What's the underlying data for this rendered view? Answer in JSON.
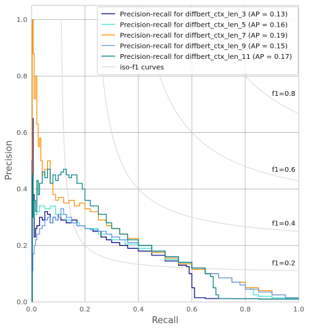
{
  "chart_data": {
    "type": "line",
    "xlabel": "Recall",
    "ylabel": "Precision",
    "xlim": [
      0.0,
      1.0
    ],
    "ylim": [
      0.0,
      1.05
    ],
    "xticks": [
      "0.0",
      "0.2",
      "0.4",
      "0.6",
      "0.8",
      "1.0"
    ],
    "xtick_values": [
      0.0,
      0.2,
      0.4,
      0.6,
      0.8,
      1.0
    ],
    "yticks": [
      "0.0",
      "0.2",
      "0.4",
      "0.6",
      "0.8",
      "1.0"
    ],
    "ytick_values": [
      0.0,
      0.2,
      0.4,
      0.6,
      0.8,
      1.0
    ],
    "grid": true,
    "legend_position": "top-right",
    "legend": [
      {
        "label": "Precision-recall for diffbert_ctx_len_3 (AP = 0.13)",
        "color": "#000080"
      },
      {
        "label": "Precision-recall for diffbert_ctx_len_5 (AP = 0.16)",
        "color": "#40e0d0"
      },
      {
        "label": "Precision-recall for diffbert_ctx_len_7 (AP = 0.19)",
        "color": "#ff8c00"
      },
      {
        "label": "Precision-recall for diffbert_ctx_len_9 (AP = 0.15)",
        "color": "#6495ed"
      },
      {
        "label": "Precision-recall for diffbert_ctx_len_11 (AP = 0.17)",
        "color": "#008080"
      },
      {
        "label": "iso-f1 curves",
        "color": "#d9d9d9"
      }
    ],
    "iso_f1": [
      {
        "f1": 0.2,
        "label": "f1=0.2",
        "label_at": [
          0.9,
          0.14
        ]
      },
      {
        "f1": 0.4,
        "label": "f1=0.4",
        "label_at": [
          0.9,
          0.28
        ]
      },
      {
        "f1": 0.6,
        "label": "f1=0.6",
        "label_at": [
          0.9,
          0.47
        ]
      },
      {
        "f1": 0.8,
        "label": "f1=0.8",
        "label_at": [
          0.9,
          0.74
        ]
      }
    ],
    "series": [
      {
        "name": "diffbert_ctx_len_3",
        "color": "#000080",
        "points": [
          [
            0.0,
            0.0
          ],
          [
            0.002,
            0.5
          ],
          [
            0.004,
            0.65
          ],
          [
            0.006,
            0.38
          ],
          [
            0.01,
            0.23
          ],
          [
            0.015,
            0.26
          ],
          [
            0.02,
            0.27
          ],
          [
            0.03,
            0.3
          ],
          [
            0.04,
            0.29
          ],
          [
            0.05,
            0.32
          ],
          [
            0.06,
            0.31
          ],
          [
            0.07,
            0.28
          ],
          [
            0.08,
            0.3
          ],
          [
            0.09,
            0.29
          ],
          [
            0.1,
            0.31
          ],
          [
            0.11,
            0.29
          ],
          [
            0.13,
            0.28
          ],
          [
            0.15,
            0.29
          ],
          [
            0.17,
            0.27
          ],
          [
            0.2,
            0.26
          ],
          [
            0.23,
            0.25
          ],
          [
            0.26,
            0.23
          ],
          [
            0.28,
            0.22
          ],
          [
            0.3,
            0.21
          ],
          [
            0.33,
            0.2
          ],
          [
            0.36,
            0.19
          ],
          [
            0.4,
            0.18
          ],
          [
            0.45,
            0.165
          ],
          [
            0.5,
            0.145
          ],
          [
            0.55,
            0.13
          ],
          [
            0.58,
            0.125
          ],
          [
            0.59,
            0.1
          ],
          [
            0.6,
            0.05
          ],
          [
            0.61,
            0.015
          ],
          [
            0.65,
            0.012
          ],
          [
            0.75,
            0.011
          ],
          [
            0.85,
            0.01
          ],
          [
            0.95,
            0.01
          ],
          [
            1.0,
            0.01
          ]
        ]
      },
      {
        "name": "diffbert_ctx_len_5",
        "color": "#40e0d0",
        "points": [
          [
            0.0,
            0.0
          ],
          [
            0.003,
            0.4
          ],
          [
            0.005,
            0.3
          ],
          [
            0.01,
            0.31
          ],
          [
            0.02,
            0.32
          ],
          [
            0.03,
            0.34
          ],
          [
            0.05,
            0.33
          ],
          [
            0.07,
            0.34
          ],
          [
            0.09,
            0.31
          ],
          [
            0.11,
            0.31
          ],
          [
            0.13,
            0.29
          ],
          [
            0.15,
            0.28
          ],
          [
            0.18,
            0.27
          ],
          [
            0.2,
            0.26
          ],
          [
            0.25,
            0.24
          ],
          [
            0.3,
            0.22
          ],
          [
            0.35,
            0.205
          ],
          [
            0.4,
            0.19
          ],
          [
            0.45,
            0.175
          ],
          [
            0.5,
            0.15
          ],
          [
            0.55,
            0.135
          ],
          [
            0.6,
            0.115
          ],
          [
            0.65,
            0.1
          ],
          [
            0.7,
            0.085
          ],
          [
            0.75,
            0.07
          ],
          [
            0.8,
            0.05
          ],
          [
            0.82,
            0.045
          ],
          [
            0.83,
            0.025
          ],
          [
            0.85,
            0.02
          ],
          [
            0.9,
            0.015
          ],
          [
            0.95,
            0.012
          ],
          [
            1.0,
            0.01
          ]
        ]
      },
      {
        "name": "diffbert_ctx_len_7",
        "color": "#ff8c00",
        "points": [
          [
            0.0,
            0.0
          ],
          [
            0.003,
            1.0
          ],
          [
            0.006,
            0.88
          ],
          [
            0.01,
            0.72
          ],
          [
            0.015,
            0.8
          ],
          [
            0.02,
            0.63
          ],
          [
            0.025,
            0.55
          ],
          [
            0.03,
            0.58
          ],
          [
            0.035,
            0.5
          ],
          [
            0.04,
            0.45
          ],
          [
            0.05,
            0.47
          ],
          [
            0.06,
            0.5
          ],
          [
            0.07,
            0.42
          ],
          [
            0.08,
            0.38
          ],
          [
            0.09,
            0.36
          ],
          [
            0.1,
            0.37
          ],
          [
            0.12,
            0.35
          ],
          [
            0.14,
            0.36
          ],
          [
            0.16,
            0.34
          ],
          [
            0.18,
            0.35
          ],
          [
            0.2,
            0.33
          ],
          [
            0.22,
            0.32
          ],
          [
            0.25,
            0.29
          ],
          [
            0.28,
            0.27
          ],
          [
            0.3,
            0.26
          ],
          [
            0.33,
            0.24
          ],
          [
            0.36,
            0.225
          ],
          [
            0.4,
            0.2
          ],
          [
            0.45,
            0.175
          ],
          [
            0.5,
            0.155
          ],
          [
            0.55,
            0.135
          ],
          [
            0.6,
            0.115
          ],
          [
            0.65,
            0.1
          ],
          [
            0.7,
            0.085
          ],
          [
            0.75,
            0.07
          ],
          [
            0.8,
            0.05
          ],
          [
            0.85,
            0.04
          ],
          [
            0.9,
            0.025
          ],
          [
            0.95,
            0.015
          ],
          [
            1.0,
            0.01
          ]
        ]
      },
      {
        "name": "diffbert_ctx_len_9",
        "color": "#6495ed",
        "points": [
          [
            0.0,
            0.0
          ],
          [
            0.002,
            0.11
          ],
          [
            0.005,
            0.17
          ],
          [
            0.01,
            0.2
          ],
          [
            0.015,
            0.22
          ],
          [
            0.02,
            0.24
          ],
          [
            0.03,
            0.26
          ],
          [
            0.04,
            0.27
          ],
          [
            0.05,
            0.29
          ],
          [
            0.06,
            0.3
          ],
          [
            0.07,
            0.28
          ],
          [
            0.08,
            0.3
          ],
          [
            0.09,
            0.29
          ],
          [
            0.1,
            0.3
          ],
          [
            0.11,
            0.33
          ],
          [
            0.12,
            0.31
          ],
          [
            0.13,
            0.3
          ],
          [
            0.15,
            0.28
          ],
          [
            0.17,
            0.27
          ],
          [
            0.2,
            0.26
          ],
          [
            0.22,
            0.255
          ],
          [
            0.25,
            0.25
          ],
          [
            0.28,
            0.24
          ],
          [
            0.3,
            0.23
          ],
          [
            0.33,
            0.22
          ],
          [
            0.36,
            0.21
          ],
          [
            0.4,
            0.2
          ],
          [
            0.45,
            0.18
          ],
          [
            0.5,
            0.16
          ],
          [
            0.55,
            0.14
          ],
          [
            0.6,
            0.12
          ],
          [
            0.65,
            0.1
          ],
          [
            0.7,
            0.085
          ],
          [
            0.75,
            0.07
          ],
          [
            0.78,
            0.06
          ],
          [
            0.8,
            0.045
          ],
          [
            0.85,
            0.035
          ],
          [
            0.9,
            0.025
          ],
          [
            0.95,
            0.015
          ],
          [
            1.0,
            0.01
          ]
        ]
      },
      {
        "name": "diffbert_ctx_len_11",
        "color": "#008080",
        "points": [
          [
            0.0,
            0.0
          ],
          [
            0.003,
            0.45
          ],
          [
            0.006,
            0.3
          ],
          [
            0.01,
            0.36
          ],
          [
            0.015,
            0.32
          ],
          [
            0.02,
            0.43
          ],
          [
            0.025,
            0.38
          ],
          [
            0.03,
            0.42
          ],
          [
            0.04,
            0.46
          ],
          [
            0.05,
            0.44
          ],
          [
            0.06,
            0.47
          ],
          [
            0.07,
            0.42
          ],
          [
            0.08,
            0.45
          ],
          [
            0.09,
            0.43
          ],
          [
            0.1,
            0.45
          ],
          [
            0.11,
            0.46
          ],
          [
            0.12,
            0.47
          ],
          [
            0.13,
            0.45
          ],
          [
            0.14,
            0.44
          ],
          [
            0.15,
            0.45
          ],
          [
            0.17,
            0.42
          ],
          [
            0.19,
            0.4
          ],
          [
            0.2,
            0.36
          ],
          [
            0.22,
            0.34
          ],
          [
            0.25,
            0.31
          ],
          [
            0.28,
            0.28
          ],
          [
            0.3,
            0.26
          ],
          [
            0.33,
            0.24
          ],
          [
            0.36,
            0.22
          ],
          [
            0.4,
            0.2
          ],
          [
            0.45,
            0.18
          ],
          [
            0.5,
            0.16
          ],
          [
            0.55,
            0.14
          ],
          [
            0.6,
            0.12
          ],
          [
            0.65,
            0.1
          ],
          [
            0.67,
            0.09
          ],
          [
            0.68,
            0.05
          ],
          [
            0.69,
            0.025
          ],
          [
            0.7,
            0.012
          ],
          [
            0.75,
            0.011
          ],
          [
            0.85,
            0.01
          ],
          [
            1.0,
            0.01
          ]
        ]
      }
    ]
  }
}
